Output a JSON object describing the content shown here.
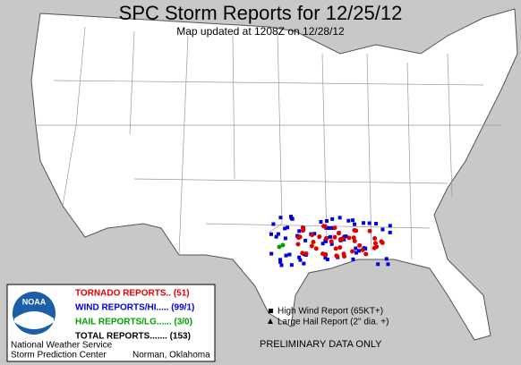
{
  "header": {
    "title": "SPC Storm Reports for 12/25/12",
    "subtitle": "Map updated at 1208Z on 12/28/12"
  },
  "legend": {
    "logo": "NOAA",
    "entries": [
      "TORNADO REPORTS.. (51)",
      "WIND REPORTS/HI..... (99/1)",
      "HAIL REPORTS/LG...... (3/0)",
      "TOTAL REPORTS....... (153)"
    ],
    "agency": "National Weather Service",
    "center": "Storm Prediction Center",
    "location": "Norman, Oklahoma"
  },
  "key": [
    "High Wind Report (65KT+)",
    "Large Hail Report (2\" dia. +)"
  ],
  "footer": "PRELIMINARY DATA ONLY"
}
